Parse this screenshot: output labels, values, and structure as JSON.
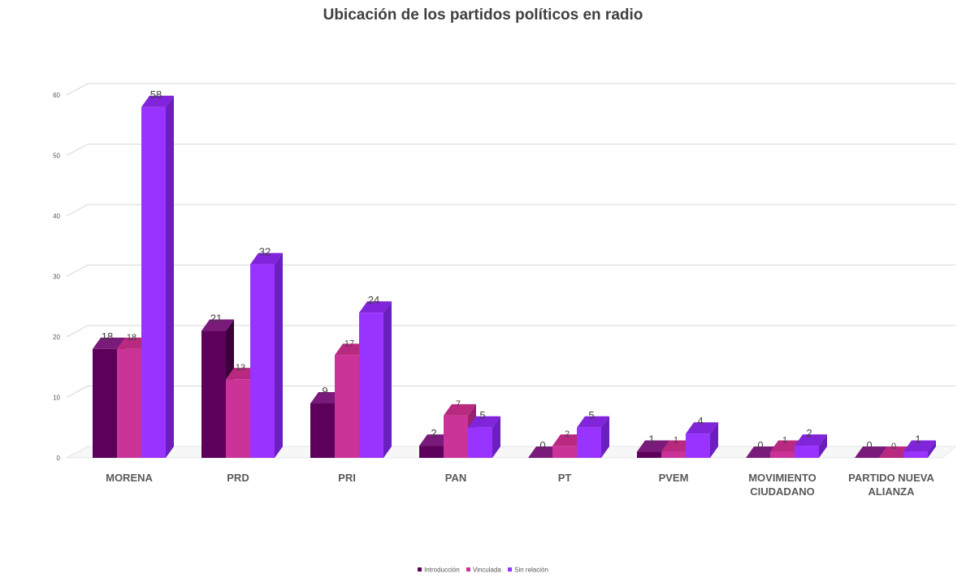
{
  "chart_data": {
    "type": "bar",
    "title": "Ubicación de los partidos políticos en radio",
    "categories": [
      [
        "MORENA"
      ],
      [
        "PRD"
      ],
      [
        "PRI"
      ],
      [
        "PAN"
      ],
      [
        "PT"
      ],
      [
        "PVEM"
      ],
      [
        "MOVIMIENTO",
        "CIUDADANO"
      ],
      [
        "PARTIDO NUEVA",
        "ALIANZA"
      ]
    ],
    "series": [
      {
        "name": "Introducción",
        "color": "#5c005c",
        "side_color": "#3a003a",
        "top_color": "#7a1a7a",
        "values": [
          18,
          21,
          9,
          2,
          0,
          1,
          0,
          0
        ]
      },
      {
        "name": "Vinculada",
        "color": "#cc3399",
        "side_color": "#99226f",
        "top_color": "#b8297f",
        "values": [
          18,
          13,
          17,
          7,
          2,
          1,
          1,
          0
        ]
      },
      {
        "name": "Sin relación",
        "color": "#9933ff",
        "side_color": "#6b1fbf",
        "top_color": "#8025d9",
        "values": [
          58,
          32,
          24,
          5,
          5,
          4,
          2,
          1
        ]
      }
    ],
    "y_ticks": [
      "0",
      "10",
      "20",
      "30",
      "40",
      "50",
      "60"
    ],
    "ylim": [
      0,
      60
    ],
    "grid": true,
    "legend_position": "bottom"
  }
}
